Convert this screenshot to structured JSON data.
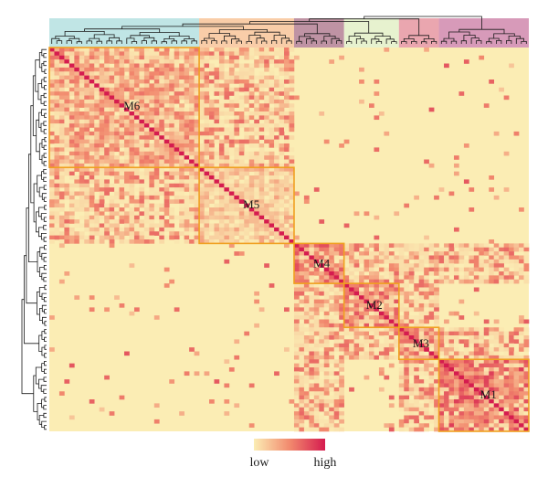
{
  "chart_data": {
    "type": "heatmap",
    "title": "",
    "xlabel": "",
    "ylabel": "",
    "n_genes": 96,
    "modules": [
      {
        "name": "M6",
        "start": 0,
        "size": 30,
        "color": "#8ccfcf",
        "strength": 0.55
      },
      {
        "name": "M5",
        "start": 30,
        "size": 19,
        "color": "#f4a460",
        "strength": 0.35
      },
      {
        "name": "M4",
        "start": 49,
        "size": 10,
        "color": "#8b3a5a",
        "strength": 0.7
      },
      {
        "name": "M2",
        "start": 59,
        "size": 11,
        "color": "#d4e8a8",
        "strength": 0.72
      },
      {
        "name": "M3",
        "start": 70,
        "size": 8,
        "color": "#d95c6e",
        "strength": 0.62
      },
      {
        "name": "M1",
        "start": 78,
        "size": 18,
        "color": "#b6477f",
        "strength": 0.78
      }
    ],
    "correlated_module_pairs": [
      [
        "M4",
        "M2"
      ],
      [
        "M4",
        "M3"
      ],
      [
        "M2",
        "M3"
      ],
      [
        "M3",
        "M1"
      ],
      [
        "M4",
        "M1"
      ],
      [
        "M6",
        "M5"
      ]
    ],
    "colorscale": {
      "low_label": "low",
      "high_label": "high",
      "low_color": "#fbedb4",
      "high_color": "#d51c4f"
    },
    "module_box_color": "#f0a020",
    "dendrogram": "hierarchical clustering tree on top and left margins"
  }
}
